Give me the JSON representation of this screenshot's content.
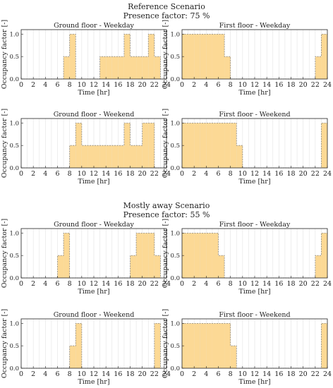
{
  "scenarios": [
    {
      "title": "Reference Scenario",
      "subtitle": "Presence factor: 75 %"
    },
    {
      "title": "Mostly away Scenario",
      "subtitle": "Presence factor: 55 %"
    }
  ],
  "colors": {
    "fill": "#fcd995",
    "edge": "#8a8a8a",
    "grid": "#e3e3e3"
  },
  "chart_data": [
    {
      "type": "area",
      "scenario": 0,
      "title": "Ground floor - Weekday",
      "xlabel": "Time [hr]",
      "ylabel": "Occupancy factor [-]",
      "xlim": [
        0,
        24
      ],
      "ylim": [
        0,
        1.1
      ],
      "xticks": [
        0,
        2,
        4,
        6,
        8,
        10,
        12,
        14,
        16,
        18,
        20,
        22,
        24
      ],
      "yticks": [
        0.0,
        0.5,
        1.0
      ],
      "x": [
        0,
        1,
        2,
        3,
        4,
        5,
        6,
        7,
        8,
        9,
        10,
        11,
        12,
        13,
        14,
        15,
        16,
        17,
        18,
        19,
        20,
        21,
        22,
        23
      ],
      "values": [
        0,
        0,
        0,
        0,
        0,
        0,
        0,
        0.5,
        1,
        0,
        0,
        0,
        0,
        0.5,
        0.5,
        0.5,
        0.5,
        1,
        0.5,
        0.5,
        0.5,
        1,
        0.5,
        0
      ]
    },
    {
      "type": "area",
      "scenario": 0,
      "title": "First floor - Weekday",
      "xlabel": "Time [hr]",
      "ylabel": "Occupancy factor [-]",
      "xlim": [
        0,
        24
      ],
      "ylim": [
        0,
        1.1
      ],
      "xticks": [
        0,
        2,
        4,
        6,
        8,
        10,
        12,
        14,
        16,
        18,
        20,
        22,
        24
      ],
      "yticks": [
        0.0,
        0.5,
        1.0
      ],
      "x": [
        0,
        1,
        2,
        3,
        4,
        5,
        6,
        7,
        8,
        9,
        10,
        11,
        12,
        13,
        14,
        15,
        16,
        17,
        18,
        19,
        20,
        21,
        22,
        23
      ],
      "values": [
        1,
        1,
        1,
        1,
        1,
        1,
        1,
        0.5,
        0,
        0,
        0,
        0,
        0,
        0,
        0,
        0,
        0,
        0,
        0,
        0,
        0,
        0,
        0.5,
        1
      ]
    },
    {
      "type": "area",
      "scenario": 0,
      "title": "Ground floor - Weekend",
      "xlabel": "Time [hr]",
      "ylabel": "Occupancy factor [-]",
      "xlim": [
        0,
        24
      ],
      "ylim": [
        0,
        1.1
      ],
      "xticks": [
        0,
        2,
        4,
        6,
        8,
        10,
        12,
        14,
        16,
        18,
        20,
        22,
        24
      ],
      "yticks": [
        0.0,
        0.5,
        1.0
      ],
      "x": [
        0,
        1,
        2,
        3,
        4,
        5,
        6,
        7,
        8,
        9,
        10,
        11,
        12,
        13,
        14,
        15,
        16,
        17,
        18,
        19,
        20,
        21,
        22,
        23
      ],
      "values": [
        0,
        0,
        0,
        0,
        0,
        0,
        0,
        0,
        0.5,
        1,
        0.5,
        0.5,
        0.5,
        0.5,
        0.5,
        0.5,
        0.5,
        1,
        0.5,
        0.5,
        1,
        1,
        0,
        0
      ]
    },
    {
      "type": "area",
      "scenario": 0,
      "title": "First floor - Weekend",
      "xlabel": "Time [hr]",
      "ylabel": "Occupancy factor [-]",
      "xlim": [
        0,
        24
      ],
      "ylim": [
        0,
        1.1
      ],
      "xticks": [
        0,
        2,
        4,
        6,
        8,
        10,
        12,
        14,
        16,
        18,
        20,
        22,
        24
      ],
      "yticks": [
        0.0,
        0.5,
        1.0
      ],
      "x": [
        0,
        1,
        2,
        3,
        4,
        5,
        6,
        7,
        8,
        9,
        10,
        11,
        12,
        13,
        14,
        15,
        16,
        17,
        18,
        19,
        20,
        21,
        22,
        23
      ],
      "values": [
        1,
        1,
        1,
        1,
        1,
        1,
        1,
        1,
        1,
        0.5,
        0,
        0,
        0,
        0,
        0,
        0,
        0,
        0,
        0,
        0,
        0,
        0,
        0,
        1
      ]
    },
    {
      "type": "area",
      "scenario": 1,
      "title": "Ground floor - Weekday",
      "xlabel": "Time [hr]",
      "ylabel": "Occupancy factor [-]",
      "xlim": [
        0,
        24
      ],
      "ylim": [
        0,
        1.1
      ],
      "xticks": [
        0,
        2,
        4,
        6,
        8,
        10,
        12,
        14,
        16,
        18,
        20,
        22,
        24
      ],
      "yticks": [
        0.0,
        0.5,
        1.0
      ],
      "x": [
        0,
        1,
        2,
        3,
        4,
        5,
        6,
        7,
        8,
        9,
        10,
        11,
        12,
        13,
        14,
        15,
        16,
        17,
        18,
        19,
        20,
        21,
        22,
        23
      ],
      "values": [
        0,
        0,
        0,
        0,
        0,
        0,
        0.5,
        1,
        0,
        0,
        0,
        0,
        0,
        0,
        0,
        0,
        0,
        0,
        0.5,
        1,
        1,
        1,
        0.5,
        0
      ]
    },
    {
      "type": "area",
      "scenario": 1,
      "title": "First floor - Weekday",
      "xlabel": "Time [hr]",
      "ylabel": "Occupancy factor [-]",
      "xlim": [
        0,
        24
      ],
      "ylim": [
        0,
        1.1
      ],
      "xticks": [
        0,
        2,
        4,
        6,
        8,
        10,
        12,
        14,
        16,
        18,
        20,
        22,
        24
      ],
      "yticks": [
        0.0,
        0.5,
        1.0
      ],
      "x": [
        0,
        1,
        2,
        3,
        4,
        5,
        6,
        7,
        8,
        9,
        10,
        11,
        12,
        13,
        14,
        15,
        16,
        17,
        18,
        19,
        20,
        21,
        22,
        23
      ],
      "values": [
        1,
        1,
        1,
        1,
        1,
        1,
        0.5,
        0,
        0,
        0,
        0,
        0,
        0,
        0,
        0,
        0,
        0,
        0,
        0,
        0,
        0,
        0,
        0.5,
        1
      ]
    },
    {
      "type": "area",
      "scenario": 1,
      "title": "Ground floor - Weekend",
      "xlabel": "Time [hr]",
      "ylabel": "Occupancy factor [-]",
      "xlim": [
        0,
        24
      ],
      "ylim": [
        0,
        1.1
      ],
      "xticks": [
        0,
        2,
        4,
        6,
        8,
        10,
        12,
        14,
        16,
        18,
        20,
        22,
        24
      ],
      "yticks": [
        0.0,
        0.5,
        1.0
      ],
      "x": [
        0,
        1,
        2,
        3,
        4,
        5,
        6,
        7,
        8,
        9,
        10,
        11,
        12,
        13,
        14,
        15,
        16,
        17,
        18,
        19,
        20,
        21,
        22,
        23
      ],
      "values": [
        0,
        0,
        0,
        0,
        0,
        0,
        0,
        0,
        0.5,
        1,
        0,
        0,
        0,
        0,
        0,
        0,
        0,
        0,
        0,
        0,
        0,
        0,
        1,
        0
      ]
    },
    {
      "type": "area",
      "scenario": 1,
      "title": "First floor - Weekend",
      "xlabel": "Time [hr]",
      "ylabel": "Occupancy factor [-]",
      "xlim": [
        0,
        24
      ],
      "ylim": [
        0,
        1.1
      ],
      "xticks": [
        0,
        2,
        4,
        6,
        8,
        10,
        12,
        14,
        16,
        18,
        20,
        22,
        24
      ],
      "yticks": [
        0.0,
        0.5,
        1.0
      ],
      "x": [
        0,
        1,
        2,
        3,
        4,
        5,
        6,
        7,
        8,
        9,
        10,
        11,
        12,
        13,
        14,
        15,
        16,
        17,
        18,
        19,
        20,
        21,
        22,
        23
      ],
      "values": [
        1,
        1,
        1,
        1,
        1,
        1,
        1,
        1,
        0.5,
        0,
        0,
        0,
        0,
        0,
        0,
        0,
        0,
        0,
        0,
        0,
        0,
        0,
        0,
        1
      ]
    }
  ]
}
